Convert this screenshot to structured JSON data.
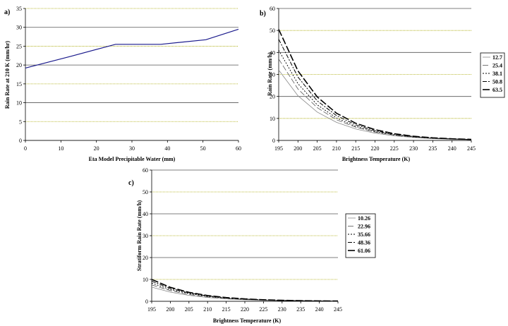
{
  "chart_data": [
    {
      "id": "a",
      "type": "line",
      "panel_label": "a)",
      "xlabel": "Eta Model Precipitable Water (mm)",
      "ylabel": "Rain Rate at 210 K (mm/hr)",
      "xlim": [
        0,
        60
      ],
      "ylim": [
        0,
        35
      ],
      "xticks": [
        0,
        10,
        20,
        30,
        40,
        50,
        60
      ],
      "yticks": [
        0,
        5,
        10,
        15,
        20,
        25,
        30,
        35
      ],
      "grid": true,
      "colors": {
        "line": "#1a1a8c",
        "grid_major": "#000000",
        "grid_minor": "#a0a000"
      },
      "series": [
        {
          "x": [
            0,
            12.7,
            25.4,
            38.1,
            50.8,
            60
          ],
          "y": [
            19.2,
            22.3,
            25.5,
            25.5,
            26.7,
            29.5
          ]
        }
      ]
    },
    {
      "id": "b",
      "type": "line",
      "panel_label": "b)",
      "xlabel": "Brightness Temperature (K)",
      "ylabel": "Rain Rate (mm/h)",
      "xlim": [
        195,
        245
      ],
      "ylim": [
        0,
        60
      ],
      "xticks": [
        195,
        200,
        205,
        210,
        215,
        220,
        225,
        230,
        235,
        240,
        245
      ],
      "yticks": [
        0,
        10,
        20,
        30,
        40,
        50,
        60
      ],
      "grid": true,
      "legend": "right",
      "x": [
        195,
        200,
        205,
        210,
        215,
        220,
        225,
        230,
        235,
        240,
        245
      ],
      "series": [
        {
          "name": "12.7",
          "values": [
            32.0,
            20.3,
            12.9,
            8.2,
            5.2,
            3.3,
            2.1,
            1.3,
            0.8,
            0.5,
            0.3
          ]
        },
        {
          "name": "25.4",
          "values": [
            37.0,
            23.4,
            14.9,
            9.4,
            6.0,
            3.8,
            2.4,
            1.5,
            0.95,
            0.6,
            0.38
          ]
        },
        {
          "name": "38.1",
          "values": [
            41.0,
            25.8,
            16.2,
            10.2,
            6.4,
            4.0,
            2.5,
            1.6,
            1.0,
            0.63,
            0.4
          ]
        },
        {
          "name": "50.8",
          "values": [
            46.0,
            28.8,
            18.0,
            11.3,
            7.1,
            4.4,
            2.8,
            1.75,
            1.1,
            0.68,
            0.43
          ]
        },
        {
          "name": "63.5",
          "values": [
            50.5,
            31.6,
            19.8,
            12.4,
            7.8,
            4.9,
            3.05,
            1.9,
            1.2,
            0.75,
            0.47
          ]
        }
      ]
    },
    {
      "id": "c",
      "type": "line",
      "panel_label": "c)",
      "xlabel": "Brightness Temperature (K)",
      "ylabel": "Stratiform Rain Rate (mm/h)",
      "xlim": [
        195,
        245
      ],
      "ylim": [
        0,
        60
      ],
      "xticks": [
        195,
        200,
        205,
        210,
        215,
        220,
        225,
        230,
        235,
        240,
        245
      ],
      "yticks": [
        0,
        10,
        20,
        30,
        40,
        50,
        60
      ],
      "grid": true,
      "legend": "right",
      "x": [
        195,
        200,
        205,
        210,
        215,
        220,
        225,
        230,
        235,
        240,
        245
      ],
      "series": [
        {
          "name": "10.26",
          "values": [
            6.5,
            4.2,
            2.7,
            1.75,
            1.1,
            0.72,
            0.46,
            0.3,
            0.19,
            0.12,
            0.08
          ]
        },
        {
          "name": "22.96",
          "values": [
            7.5,
            4.9,
            3.1,
            2.0,
            1.3,
            0.84,
            0.54,
            0.35,
            0.22,
            0.14,
            0.09
          ]
        },
        {
          "name": "35.66",
          "values": [
            8.3,
            5.4,
            3.5,
            2.25,
            1.45,
            0.93,
            0.6,
            0.39,
            0.25,
            0.16,
            0.1
          ]
        },
        {
          "name": "48.36",
          "values": [
            9.2,
            5.9,
            3.8,
            2.45,
            1.6,
            1.02,
            0.66,
            0.42,
            0.27,
            0.17,
            0.11
          ]
        },
        {
          "name": "61.06",
          "values": [
            10.0,
            6.4,
            4.1,
            2.65,
            1.7,
            1.1,
            0.71,
            0.46,
            0.29,
            0.19,
            0.12
          ]
        }
      ]
    }
  ]
}
